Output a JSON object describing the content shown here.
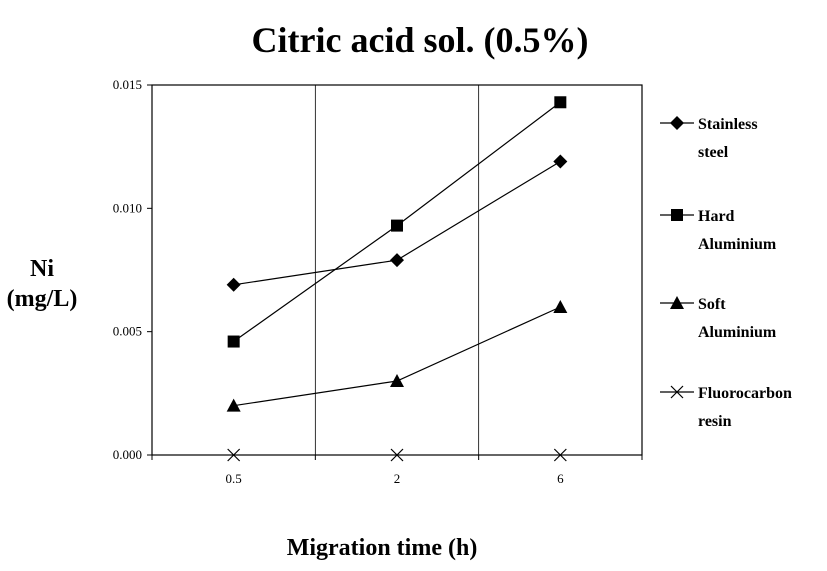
{
  "chart_data": {
    "type": "line",
    "title": "Citric acid sol. (0.5%)",
    "xlabel": "Migration time (h)",
    "ylabel_line1": "Ni",
    "ylabel_line2": "(mg/L)",
    "categories": [
      "0.5",
      "2",
      "6"
    ],
    "yticks": [
      "0.000",
      "0.005",
      "0.010",
      "0.015"
    ],
    "ylim": [
      0,
      0.015
    ],
    "grid": "vertical-between-categories",
    "legend_position": "right",
    "series": [
      {
        "name_line1": "Stainless",
        "name_line2": "steel",
        "marker": "diamond",
        "values": [
          0.0069,
          0.0079,
          0.0119
        ]
      },
      {
        "name_line1": "Hard",
        "name_line2": "Aluminium",
        "marker": "square",
        "values": [
          0.0046,
          0.0093,
          0.0143
        ]
      },
      {
        "name_line1": "Soft",
        "name_line2": "Aluminium",
        "marker": "triangle",
        "values": [
          0.002,
          0.003,
          0.006
        ]
      },
      {
        "name_line1": "Fluorocarbon",
        "name_line2": "resin",
        "marker": "x",
        "values": [
          0.0,
          0.0,
          0.0
        ]
      }
    ],
    "line_color": "#000000"
  }
}
